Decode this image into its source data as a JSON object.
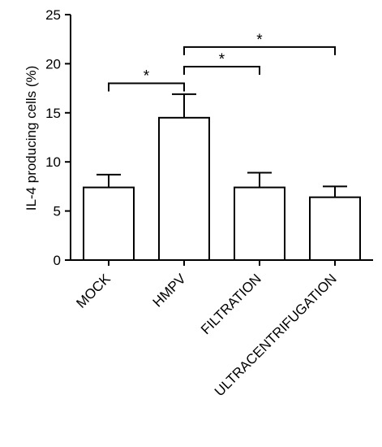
{
  "chart_data": {
    "type": "bar",
    "categories": [
      "MOCK",
      "HMPV",
      "FILTRATION",
      "ULTRACENTRIFUGATION"
    ],
    "values": [
      7.4,
      14.5,
      7.4,
      6.4
    ],
    "errors": [
      1.3,
      2.4,
      1.5,
      1.1
    ],
    "ylabel": "IL-4 producing cells (%)",
    "xlabel": "",
    "ylim": [
      0,
      25
    ],
    "yticks": [
      0,
      5,
      10,
      15,
      20,
      25
    ],
    "significance": [
      {
        "from": 0,
        "to": 1,
        "level": 18,
        "label": "*"
      },
      {
        "from": 1,
        "to": 2,
        "level": 19.7,
        "label": "*"
      },
      {
        "from": 1,
        "to": 3,
        "level": 21.7,
        "label": "*"
      }
    ],
    "bar_color": "#ffffff",
    "edge_color": "#000000"
  }
}
